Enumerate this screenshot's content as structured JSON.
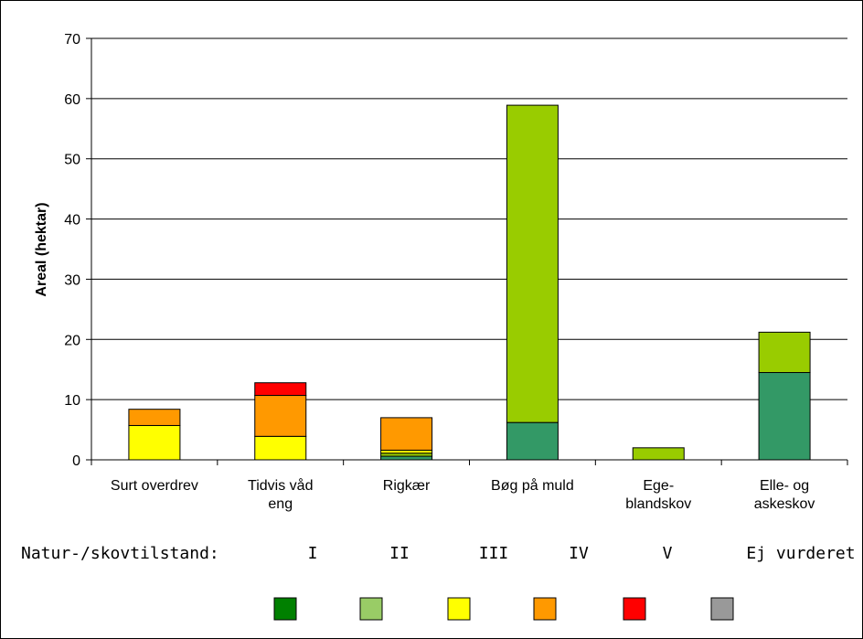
{
  "chart_data": {
    "type": "bar",
    "stacked": true,
    "ylabel": "Areal (hektar)",
    "ylim": [
      0,
      70
    ],
    "yticks": [
      0,
      10,
      20,
      30,
      40,
      50,
      60,
      70
    ],
    "grid": true,
    "categories": [
      [
        "Surt overdrev"
      ],
      [
        "Tidvis våd",
        "eng"
      ],
      [
        "Rigkær"
      ],
      [
        "Bøg på muld"
      ],
      [
        "Ege-",
        "blandskov"
      ],
      [
        "Elle- og",
        "askeskov"
      ]
    ],
    "series": [
      {
        "color": "#339966",
        "values": [
          0,
          0,
          0.6,
          6.2,
          0,
          14.5
        ]
      },
      {
        "color": "#99CC00",
        "values": [
          0,
          0,
          0.5,
          52.7,
          2.0,
          6.7
        ]
      },
      {
        "color": "#FFFF00",
        "values": [
          5.7,
          3.9,
          0.5,
          0,
          0,
          0
        ]
      },
      {
        "color": "#FF9900",
        "values": [
          2.7,
          6.8,
          5.4,
          0,
          0,
          0
        ]
      },
      {
        "color": "#FF0000",
        "values": [
          0,
          2.1,
          0,
          0,
          0,
          0
        ]
      }
    ]
  },
  "legend": {
    "label": "Natur-/skovtilstand:",
    "items": [
      {
        "label": "I",
        "color": "#008000"
      },
      {
        "label": "II",
        "color": "#99CC66"
      },
      {
        "label": "III",
        "color": "#FFFF00"
      },
      {
        "label": "IV",
        "color": "#FF9900"
      },
      {
        "label": "V",
        "color": "#FF0000"
      },
      {
        "label": "Ej vurderet",
        "color": "#999999"
      }
    ]
  }
}
